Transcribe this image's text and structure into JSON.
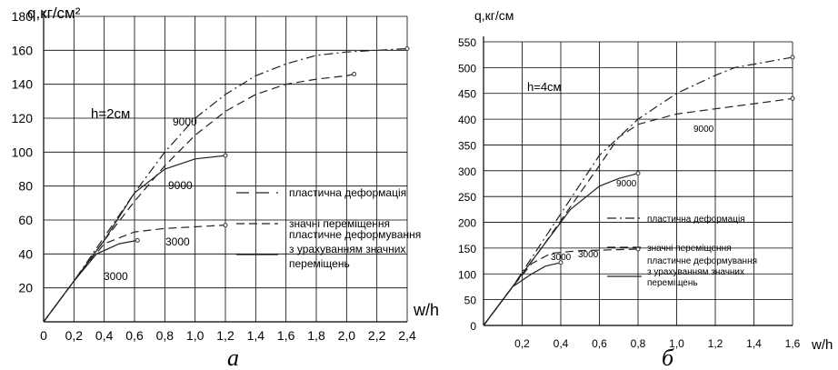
{
  "chart_data": [
    {
      "type": "line",
      "panel_label": "а",
      "ylabel": "q,кг/см²",
      "xlabel": "w/h",
      "annotation": "h=2см",
      "xlim": [
        0,
        2.4
      ],
      "ylim": [
        0,
        180
      ],
      "x_ticks": [
        "0",
        "0,2",
        "0,4",
        "0,6",
        "0,8",
        "1,0",
        "1,2",
        "1,4",
        "1,6",
        "1,8",
        "2,0",
        "2,2",
        "2,4"
      ],
      "y_ticks": [
        "20",
        "40",
        "60",
        "80",
        "100",
        "120",
        "140",
        "160",
        "180"
      ],
      "grid": true,
      "legend": [
        {
          "label": "пластична деформація",
          "style": "dash-long"
        },
        {
          "label": "значні переміщення",
          "style": "dash"
        },
        {
          "label": "пластичне деформування\nз урахуванням значних\nпереміщень",
          "style": "solid"
        }
      ],
      "series": [
        {
          "label": "9000",
          "style": "dashdot",
          "x": [
            0,
            0.2,
            0.4,
            0.6,
            0.8,
            1.0,
            1.2,
            1.4,
            1.6,
            1.8,
            2.0,
            2.2,
            2.4
          ],
          "y": [
            0,
            24,
            50,
            76,
            100,
            120,
            134,
            145,
            152,
            157,
            159,
            160,
            161
          ]
        },
        {
          "label": "",
          "style": "dash",
          "x": [
            0,
            0.2,
            0.4,
            0.6,
            0.8,
            1.0,
            1.2,
            1.4,
            1.6,
            1.8,
            2.0,
            2.05
          ],
          "y": [
            0,
            24,
            48,
            71,
            92,
            110,
            124,
            134,
            140,
            143,
            145,
            146
          ]
        },
        {
          "label": "9000",
          "style": "solid",
          "x": [
            0,
            0.2,
            0.4,
            0.6,
            0.8,
            1.0,
            1.2
          ],
          "y": [
            0,
            24,
            48,
            76,
            90,
            96,
            98
          ]
        },
        {
          "label": "3000",
          "style": "dash",
          "x": [
            0,
            0.2,
            0.4,
            0.6,
            0.8,
            1.0,
            1.2
          ],
          "y": [
            0,
            24,
            46,
            53,
            55,
            56,
            57
          ]
        },
        {
          "label": "3000",
          "style": "solid",
          "x": [
            0,
            0.2,
            0.35,
            0.5,
            0.62
          ],
          "y": [
            0,
            24,
            40,
            46,
            48
          ]
        }
      ]
    },
    {
      "type": "line",
      "panel_label": "б",
      "ylabel": "q,кг/см",
      "xlabel": "w/h",
      "annotation": "h=4см",
      "xlim": [
        0,
        1.6
      ],
      "ylim": [
        0,
        550
      ],
      "x_ticks": [
        "0,2",
        "0,4",
        "0,6",
        "0,8",
        "1,0",
        "1,2",
        "1,4",
        "1,6"
      ],
      "y_ticks": [
        "0",
        "50",
        "100",
        "150",
        "200",
        "250",
        "300",
        "350",
        "400",
        "450",
        "500",
        "550"
      ],
      "y_zero_label": "0",
      "grid": true,
      "legend": [
        {
          "label": "пластична деформація",
          "style": "dashdot"
        },
        {
          "label": "значні переміщення",
          "style": "dash"
        },
        {
          "label": "пластичне деформування\nз урахуванням значних\nпереміщень",
          "style": "solid"
        }
      ],
      "series": [
        {
          "label": "",
          "style": "dashdot",
          "x": [
            0,
            0.15,
            0.3,
            0.45,
            0.6,
            0.8,
            1.0,
            1.2,
            1.3,
            1.6
          ],
          "y": [
            0,
            75,
            160,
            245,
            330,
            400,
            450,
            485,
            500,
            520
          ]
        },
        {
          "label": "9000",
          "style": "dash",
          "x": [
            0,
            0.15,
            0.3,
            0.45,
            0.6,
            0.7,
            0.8,
            1.0,
            1.2,
            1.4,
            1.6
          ],
          "y": [
            0,
            75,
            150,
            230,
            310,
            365,
            390,
            410,
            420,
            430,
            440
          ]
        },
        {
          "label": "9000",
          "style": "solid",
          "x": [
            0,
            0.15,
            0.3,
            0.45,
            0.6,
            0.7,
            0.8
          ],
          "y": [
            0,
            75,
            150,
            225,
            270,
            285,
            295
          ]
        },
        {
          "label": "3000",
          "style": "dash",
          "x": [
            0,
            0.15,
            0.25,
            0.35,
            0.5,
            0.7,
            0.8
          ],
          "y": [
            0,
            75,
            120,
            140,
            145,
            147,
            148
          ]
        },
        {
          "label": "3000",
          "style": "solid",
          "x": [
            0,
            0.15,
            0.25,
            0.32,
            0.4
          ],
          "y": [
            0,
            75,
            100,
            115,
            122
          ]
        }
      ]
    }
  ]
}
